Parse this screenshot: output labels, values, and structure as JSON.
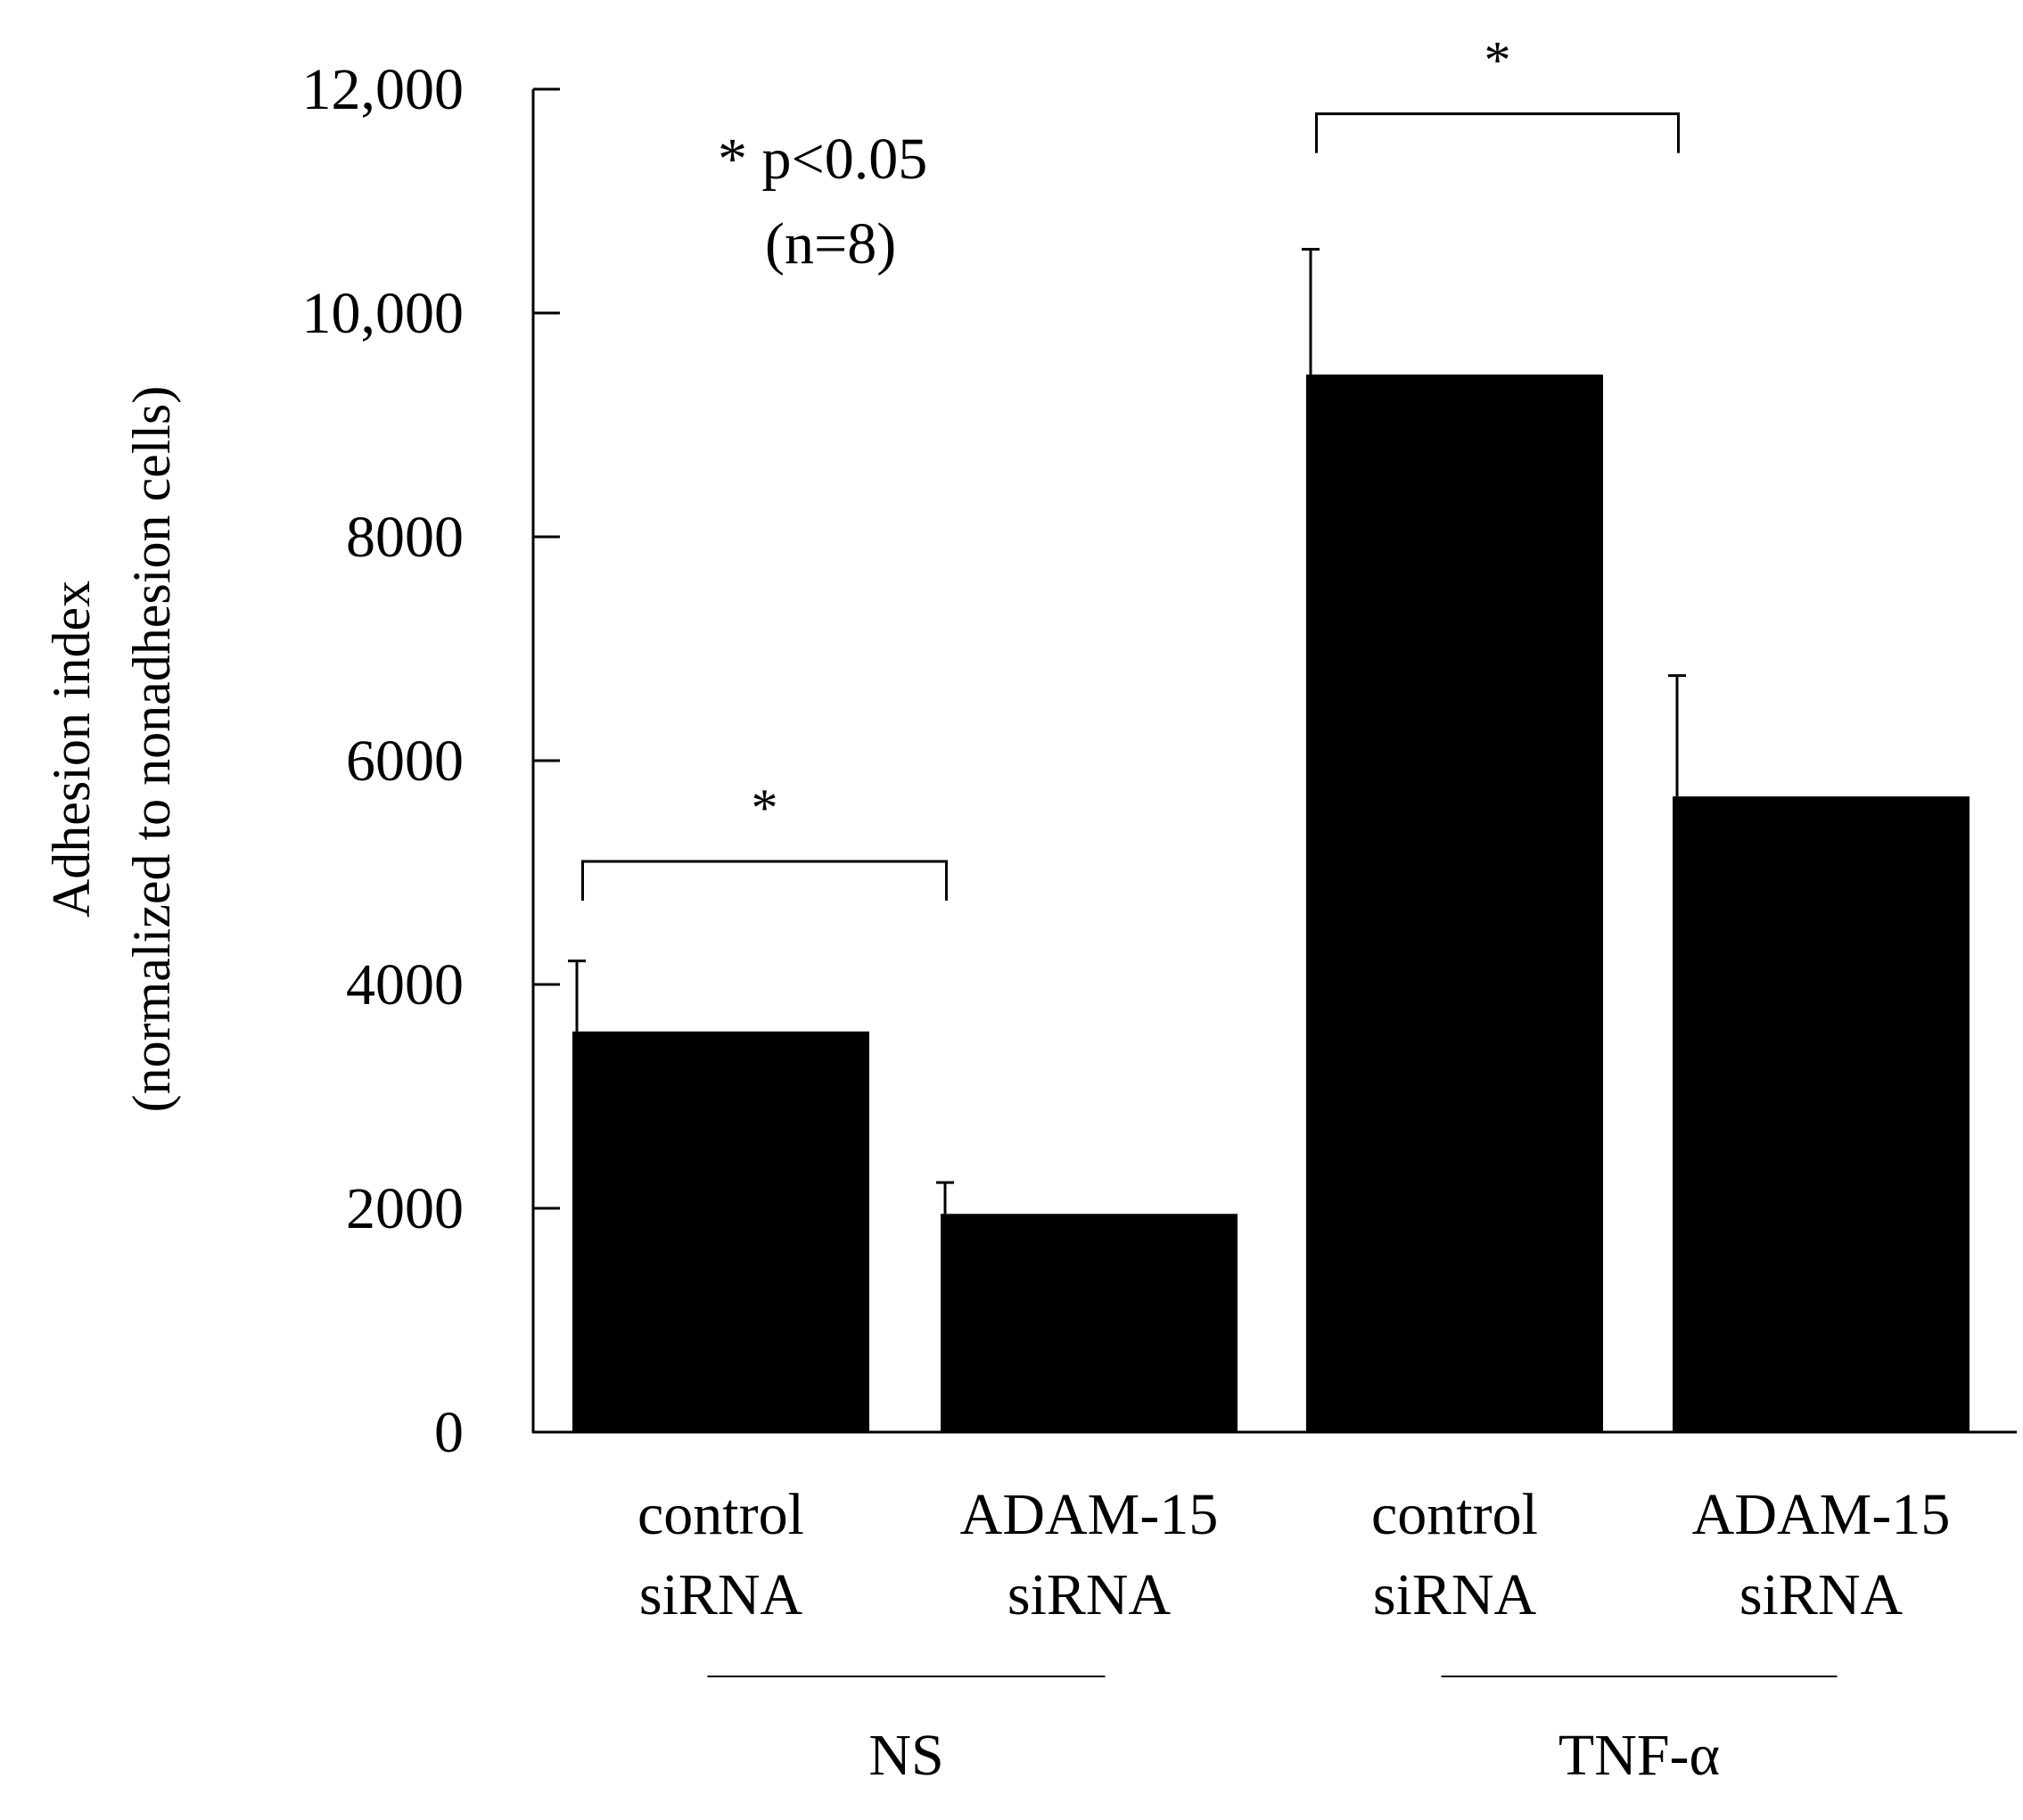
{
  "chart_data": {
    "type": "bar",
    "title": "",
    "ylabel_line1": "Adhesion index",
    "ylabel_line2": "(normalized to nonadhesion cells)",
    "xlabel": "",
    "ylim": [
      0,
      12000
    ],
    "yticks": [
      {
        "value": 0,
        "label": "0"
      },
      {
        "value": 2000,
        "label": "2000"
      },
      {
        "value": 4000,
        "label": "4000"
      },
      {
        "value": 6000,
        "label": "6000"
      },
      {
        "value": 8000,
        "label": "8000"
      },
      {
        "value": 10000,
        "label": "10,000"
      },
      {
        "value": 12000,
        "label": "12,000"
      }
    ],
    "bars": [
      {
        "line1": "control",
        "line2": "siRNA",
        "group": "NS",
        "value": 3580,
        "error": 630
      },
      {
        "line1": "ADAM-15",
        "line2": "siRNA",
        "group": "NS",
        "value": 1950,
        "error": 280
      },
      {
        "line1": "control",
        "line2": "siRNA",
        "group": "TNF-α",
        "value": 9450,
        "error": 1120
      },
      {
        "line1": "ADAM-15",
        "line2": "siRNA",
        "group": "TNF-α",
        "value": 5680,
        "error": 1080
      }
    ],
    "groups": [
      {
        "label": "NS",
        "bars": [
          0,
          1
        ]
      },
      {
        "label": "TNF-α",
        "bars": [
          2,
          3
        ]
      }
    ],
    "significance": [
      {
        "from": 0,
        "to": 1,
        "label": "*",
        "level": 5100
      },
      {
        "from": 2,
        "to": 3,
        "label": "*",
        "level": 11780
      }
    ],
    "annotation_line1": "* p<0.05",
    "annotation_line2": "(n=8)",
    "bar_color": "#000000"
  }
}
